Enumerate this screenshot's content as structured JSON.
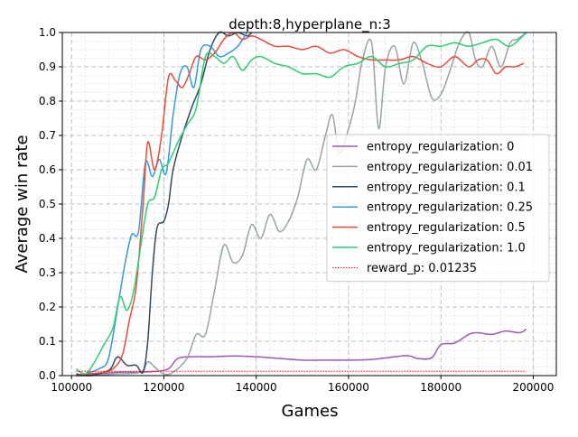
{
  "chart_data": {
    "type": "line",
    "title": "depth:8,hyperplane_n:3",
    "xlabel": "Games",
    "ylabel": "Average win rate",
    "xlim": [
      98000,
      205000
    ],
    "ylim": [
      0,
      1.0
    ],
    "xticks": [
      100000,
      120000,
      140000,
      160000,
      180000,
      200000
    ],
    "yticks": [
      0.0,
      0.1,
      0.2,
      0.3,
      0.4,
      0.5,
      0.6,
      0.7,
      0.8,
      0.9,
      1.0
    ],
    "xtick_labels": [
      "100000",
      "120000",
      "140000",
      "160000",
      "180000",
      "200000"
    ],
    "ytick_labels": [
      "0.0",
      "0.1",
      "0.2",
      "0.3",
      "0.4",
      "0.5",
      "0.6",
      "0.7",
      "0.8",
      "0.9",
      "1.0"
    ],
    "grid": true,
    "legend_position": "center-right",
    "series": [
      {
        "name": "entropy_regularization: 0",
        "color": "#9b59b6",
        "x": [
          101000,
          103000,
          106000,
          110000,
          114000,
          118000,
          121000,
          123000,
          126000,
          130000,
          135000,
          140000,
          145000,
          150000,
          155000,
          160000,
          165000,
          170000,
          173000,
          175000,
          178000,
          180000,
          183000,
          186000,
          188000,
          191000,
          194000,
          197000,
          198500
        ],
        "y": [
          0.0,
          0.0,
          0.005,
          0.01,
          0.01,
          0.012,
          0.02,
          0.05,
          0.055,
          0.055,
          0.057,
          0.055,
          0.05,
          0.045,
          0.045,
          0.045,
          0.047,
          0.055,
          0.058,
          0.05,
          0.052,
          0.09,
          0.095,
          0.12,
          0.125,
          0.12,
          0.13,
          0.125,
          0.135
        ]
      },
      {
        "name": "entropy_regularization: 0.01",
        "color": "#95a5a6",
        "x": [
          101000,
          104000,
          110000,
          115000,
          116500,
          118000,
          120000,
          122000,
          125000,
          127000,
          129000,
          131000,
          133000,
          135000,
          137000,
          139000,
          141000,
          143000,
          145000,
          147000,
          149000,
          151000,
          153000,
          155000,
          156500,
          158000,
          160000,
          161500,
          163000,
          165000,
          166500,
          168000,
          170000,
          172000,
          174000,
          176000,
          178000,
          180000,
          182000,
          184000,
          186000,
          187500,
          189000,
          191000,
          193000,
          195000,
          196500,
          198500
        ],
        "y": [
          0.0,
          0.0,
          0.005,
          0.01,
          0.04,
          0.025,
          0.005,
          0.01,
          0.05,
          0.12,
          0.12,
          0.25,
          0.38,
          0.33,
          0.35,
          0.44,
          0.4,
          0.47,
          0.42,
          0.45,
          0.52,
          0.63,
          0.6,
          0.7,
          0.76,
          0.65,
          0.72,
          0.8,
          0.92,
          0.97,
          0.72,
          0.9,
          0.96,
          0.85,
          0.97,
          0.91,
          0.81,
          0.82,
          0.89,
          0.97,
          1.0,
          0.92,
          0.9,
          0.96,
          0.9,
          0.97,
          0.98,
          1.0
        ]
      },
      {
        "name": "entropy_regularization: 0.1",
        "color": "#34495e",
        "x": [
          101000,
          104000,
          107000,
          108500,
          110000,
          112000,
          114000,
          115500,
          116500,
          117500,
          118500,
          120000,
          121000,
          122000,
          124000,
          126000,
          128000,
          130000,
          132000,
          134000,
          136000,
          138000,
          139000
        ],
        "y": [
          0.005,
          0.0,
          0.01,
          0.02,
          0.055,
          0.03,
          0.03,
          0.01,
          0.1,
          0.3,
          0.43,
          0.45,
          0.5,
          0.6,
          0.7,
          0.78,
          0.85,
          0.95,
          1.0,
          0.99,
          1.0,
          0.99,
          1.0
        ]
      },
      {
        "name": "entropy_regularization: 0.25",
        "color": "#3498db",
        "x": [
          101000,
          103000,
          106000,
          108000,
          110000,
          111500,
          113000,
          114500,
          116000,
          117500,
          119000,
          120500,
          122000,
          123500,
          125000,
          126500,
          128000,
          130000,
          132000,
          134000,
          136000,
          138000
        ],
        "y": [
          0.0,
          0.005,
          0.02,
          0.05,
          0.2,
          0.32,
          0.41,
          0.42,
          0.62,
          0.58,
          0.63,
          0.59,
          0.76,
          0.88,
          0.9,
          0.84,
          0.95,
          0.96,
          0.93,
          0.94,
          0.96,
          1.0
        ]
      },
      {
        "name": "entropy_regularization: 0.5",
        "color": "#e74c3c",
        "x": [
          101000,
          104000,
          107000,
          109000,
          111000,
          112500,
          114000,
          115500,
          116500,
          118000,
          119500,
          121000,
          122500,
          124000,
          125500,
          127000,
          129000,
          131000,
          133000,
          135000,
          137000,
          139000,
          141000,
          144000,
          147000,
          150000,
          153000,
          156000,
          159000,
          162000,
          165000,
          168000,
          171000,
          174000,
          177000,
          180000,
          183000,
          186000,
          188000,
          190000,
          192000,
          194000,
          196000,
          198000
        ],
        "y": [
          0.0,
          0.005,
          0.01,
          0.02,
          0.06,
          0.16,
          0.26,
          0.5,
          0.68,
          0.6,
          0.7,
          0.87,
          0.86,
          0.84,
          0.88,
          0.93,
          0.92,
          0.94,
          0.98,
          1.0,
          0.98,
          0.99,
          0.98,
          0.96,
          0.96,
          0.95,
          0.96,
          0.94,
          0.95,
          0.93,
          0.92,
          0.92,
          0.92,
          0.93,
          0.91,
          0.9,
          0.93,
          0.9,
          0.92,
          0.92,
          0.88,
          0.9,
          0.9,
          0.91
        ]
      },
      {
        "name": "entropy_regularization: 1.0",
        "color": "#2ecc71",
        "x": [
          101000,
          103000,
          105000,
          107000,
          109000,
          110500,
          112000,
          113500,
          115000,
          116500,
          118000,
          119500,
          121000,
          123000,
          125000,
          127000,
          129000,
          131000,
          133000,
          135000,
          137000,
          139000,
          141000,
          144000,
          147000,
          150000,
          153000,
          156000,
          159000,
          162000,
          165000,
          168000,
          171000,
          174000,
          177000,
          180000,
          183000,
          186000,
          189000,
          192000,
          195000,
          198500
        ],
        "y": [
          0.02,
          0.005,
          0.04,
          0.09,
          0.14,
          0.23,
          0.19,
          0.25,
          0.38,
          0.5,
          0.52,
          0.6,
          0.62,
          0.68,
          0.73,
          0.78,
          0.93,
          0.93,
          0.91,
          0.93,
          0.89,
          0.92,
          0.93,
          0.91,
          0.9,
          0.88,
          0.88,
          0.87,
          0.9,
          0.91,
          0.93,
          0.9,
          0.91,
          0.92,
          0.96,
          0.96,
          0.97,
          0.96,
          0.97,
          0.98,
          0.96,
          1.0
        ]
      },
      {
        "name": "reward_p: 0.01235",
        "color": "#ff0000",
        "dotted": true,
        "x": [
          101000,
          198500
        ],
        "y": [
          0.01235,
          0.01235
        ]
      }
    ]
  }
}
